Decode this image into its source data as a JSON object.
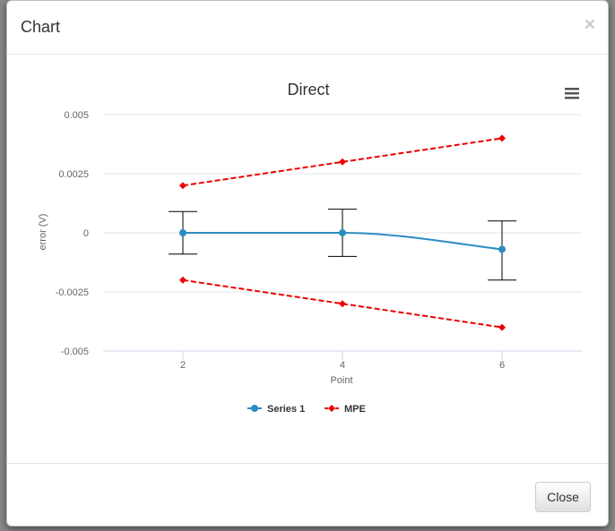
{
  "modal": {
    "title": "Chart",
    "close_symbol": "×",
    "close_button_label": "Close"
  },
  "menu_icon": "hamburger-menu-icon",
  "chart_data": {
    "type": "line",
    "title": "Direct",
    "xlabel": "Point",
    "ylabel": "error (V)",
    "xlim": [
      1,
      7
    ],
    "ylim": [
      -0.005,
      0.005
    ],
    "x_ticks": [
      2,
      4,
      6
    ],
    "x_tick_labels": [
      "2",
      "4",
      "6"
    ],
    "y_ticks": [
      0.005,
      0.0025,
      0,
      -0.0025,
      -0.005
    ],
    "y_tick_labels": [
      "0.005",
      "0.0025",
      "0",
      "-0.0025",
      "-0.005"
    ],
    "grid": true,
    "legend_position": "bottom-center",
    "series": [
      {
        "name": "Series 1",
        "color": "#2b8cc4",
        "line_style": "solid-smooth",
        "marker": "circle",
        "x": [
          2,
          4,
          6
        ],
        "y": [
          0,
          0,
          -0.0007
        ],
        "error_low": [
          -0.0009,
          -0.001,
          -0.002
        ],
        "error_high": [
          0.0009,
          0.001,
          0.0005
        ]
      },
      {
        "name": "MPE",
        "color": "#ee0000",
        "line_style": "dashed",
        "marker": "diamond",
        "x": [
          2,
          4,
          6
        ],
        "y": [
          0.002,
          0.003,
          0.004
        ]
      },
      {
        "name": "",
        "color": "#ee0000",
        "line_style": "dashed",
        "marker": "diamond",
        "x": [
          2,
          4,
          6
        ],
        "y": [
          -0.002,
          -0.003,
          -0.004
        ]
      }
    ]
  }
}
